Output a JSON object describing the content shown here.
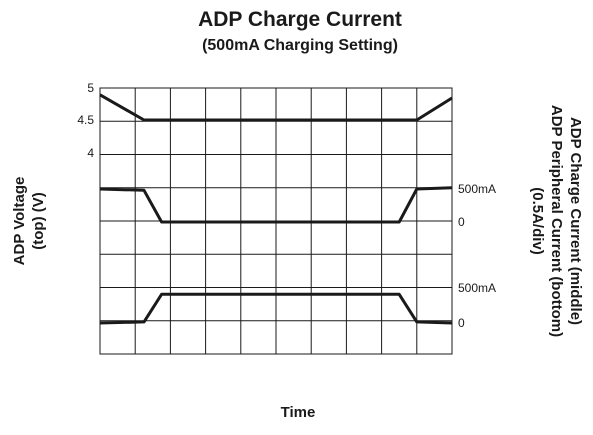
{
  "chart_data": {
    "type": "line",
    "title": "ADP Charge Current",
    "subtitle": "(500mA Charging Setting)",
    "xlabel": "Time",
    "ylabel_left": [
      "ADP Voltage",
      "(top) (V)"
    ],
    "ylabel_right": [
      "ADP Charge Current (middle)",
      "ADP Peripheral Current (bottom)",
      "(0.5A/div)"
    ],
    "grid": true,
    "divisions": {
      "x": 10,
      "y": 8
    },
    "left_ticks": [
      "5",
      "4.5",
      "4"
    ],
    "right_ticks": [
      "500mA",
      "0",
      "500mA",
      "0"
    ],
    "x_divisions": [
      0,
      1.25,
      1.75,
      8.5,
      9,
      10
    ],
    "series": [
      {
        "name": "ADP Voltage",
        "unit": "V",
        "values": [
          4.9,
          4.5,
          4.5,
          4.5,
          4.5,
          4.85
        ]
      },
      {
        "name": "ADP Charge Current",
        "unit": "mA",
        "values": [
          500,
          480,
          0,
          0,
          500,
          520
        ]
      },
      {
        "name": "ADP Peripheral Current",
        "unit": "mA",
        "values": [
          0,
          20,
          500,
          500,
          20,
          0
        ]
      }
    ]
  }
}
